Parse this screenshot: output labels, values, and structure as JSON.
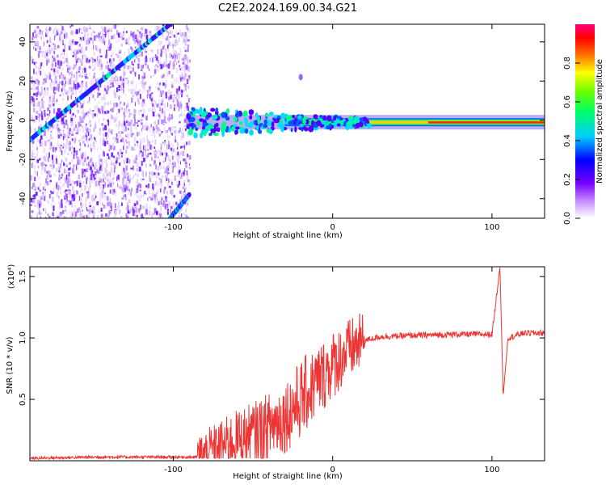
{
  "title": "C2E2.2024.169.00.34.G21",
  "chart_data": [
    {
      "type": "heatmap",
      "xlabel": "Height of straight line (km)",
      "ylabel": "Frequency (Hz)",
      "xlim": [
        -190,
        133
      ],
      "ylim": [
        -50,
        49
      ],
      "x_ticks": [
        -100,
        0,
        100
      ],
      "x_tick_labels": [
        "-100",
        "0",
        "100"
      ],
      "y_ticks": [
        40,
        20,
        0,
        -20,
        -40
      ],
      "y_tick_labels": [
        "40",
        "20",
        "0",
        "-20",
        "-40"
      ],
      "colorbar": {
        "label": "Normalized spectral amplitude",
        "range": [
          0,
          1
        ],
        "ticks": [
          0.0,
          0.2,
          0.4,
          0.6,
          0.8
        ],
        "tick_labels": [
          "0.0",
          "0.2",
          "0.4",
          "0.6",
          "0.8"
        ],
        "colors": [
          "#ffffff",
          "#8800ff",
          "#0000ff",
          "#00ffff",
          "#00ff00",
          "#ffff00",
          "#ff8800",
          "#ff0000",
          "#ff00aa"
        ]
      },
      "features": {
        "noise_region_x": [
          -190,
          -90
        ],
        "carrier_freq_hz": -1,
        "diagonal_track_1": {
          "x": [
            -190,
            -102
          ],
          "freq": [
            -10,
            49
          ]
        },
        "diagonal_track_2": {
          "x": [
            -102,
            -90
          ],
          "freq": [
            -50,
            -38
          ]
        },
        "spot": {
          "x": -20,
          "freq": 22
        }
      }
    },
    {
      "type": "line",
      "xlabel": "Height of straight line (km)",
      "ylabel": "SNR (10 * v/v)",
      "scale_label": "(x10⁴)",
      "xlim": [
        -190,
        133
      ],
      "ylim": [
        0,
        1.58
      ],
      "x_ticks": [
        -100,
        0,
        100
      ],
      "x_tick_labels": [
        "-100",
        "0",
        "100"
      ],
      "y_ticks": [
        0.5,
        1.0,
        1.5
      ],
      "y_tick_labels": [
        "0.5",
        "1.0",
        "1.5"
      ],
      "series": [
        {
          "color": "#ee3333",
          "x": [
            -190,
            -150,
            -110,
            -85,
            -80,
            -70,
            -60,
            -50,
            -40,
            -30,
            -20,
            -10,
            0,
            10,
            20,
            30,
            50,
            80,
            100,
            105,
            107,
            110,
            120,
            133
          ],
          "y": [
            0.02,
            0.03,
            0.03,
            0.03,
            0.06,
            0.12,
            0.18,
            0.22,
            0.28,
            0.36,
            0.5,
            0.64,
            0.78,
            0.9,
            0.98,
            1.01,
            1.02,
            1.03,
            1.03,
            1.58,
            0.52,
            1.0,
            1.04,
            1.04
          ]
        }
      ]
    }
  ]
}
